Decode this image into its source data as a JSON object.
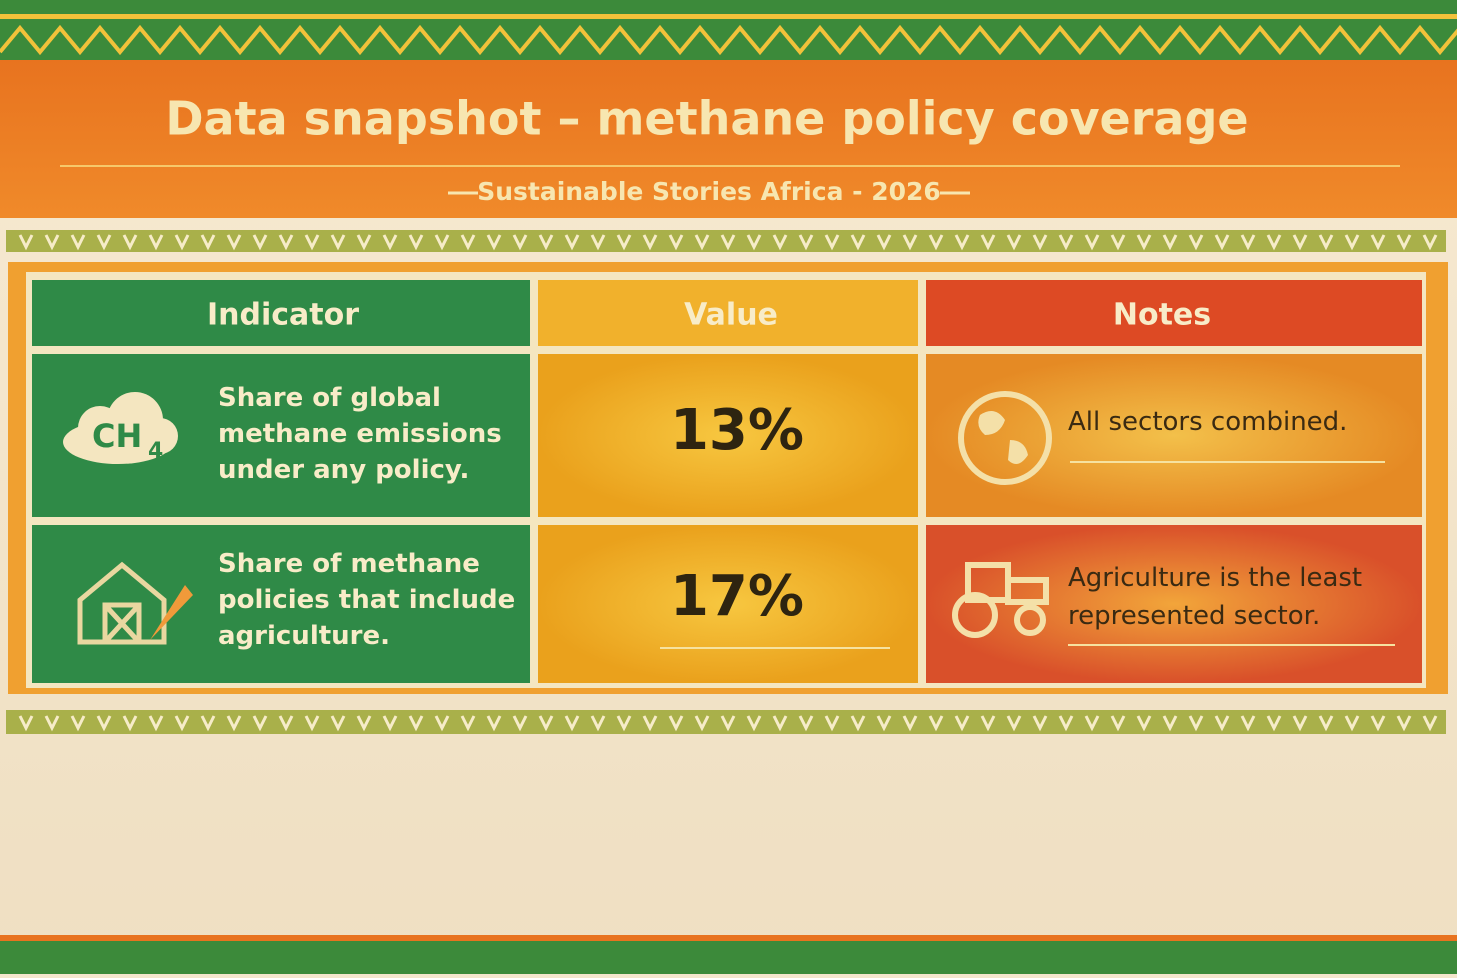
{
  "header": {
    "title": "Data snapshot – methane policy coverage",
    "subtitle": "Sustainable Stories Africa - 2026"
  },
  "table": {
    "headers": [
      "Indicator",
      "Value",
      "Notes"
    ],
    "rows": [
      [
        "Share of global methane emissions under any policy.",
        "13%",
        "All sectors combined."
      ],
      [
        "Share of methane policies that include agriculture.",
        "17%",
        "Agriculture is the least represented sector."
      ]
    ]
  },
  "icons": {
    "methane_label": "CH",
    "methane_subscript": "4"
  }
}
